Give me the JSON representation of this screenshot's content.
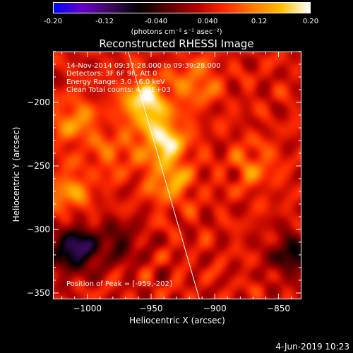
{
  "colorbar": {
    "ticks": [
      "-0.20",
      "-0.12",
      "-0.040",
      "0.040",
      "0.12",
      "0.20"
    ],
    "tick_values": [
      -0.2,
      -0.12,
      -0.04,
      0.04,
      0.12,
      0.2
    ],
    "range": [
      -0.2,
      0.2
    ],
    "unit_label": "(photons cm⁻² s⁻¹ asec⁻²)",
    "colormap": [
      "#0000ff",
      "#6a00c8",
      "#3a0a5e",
      "#000000",
      "#5a0000",
      "#b00000",
      "#ff2a00",
      "#ff7a00",
      "#ffc000",
      "#ffffff"
    ]
  },
  "chart_data": {
    "type": "heatmap",
    "title": "Reconstructed RHESSI Image",
    "xlabel": "Heliocentric X (arcsec)",
    "ylabel": "Heliocentric Y (arcsec)",
    "xlim": [
      -1027,
      -832
    ],
    "ylim": [
      -355,
      -160
    ],
    "xticks": [
      -1000,
      -950,
      -900,
      -850
    ],
    "yticks": [
      -350,
      -300,
      -250,
      -200
    ],
    "xtick_labels": [
      "−1000",
      "−950",
      "−900",
      "−850"
    ],
    "ytick_labels": [
      "−350",
      "−300",
      "−250",
      "−200"
    ],
    "peak": [
      -959,
      -202
    ],
    "limb_line": [
      [
        -968,
        -160
      ],
      [
        -912,
        -355
      ]
    ],
    "hot_spots": [
      {
        "x": -955,
        "y": -200,
        "v": 0.19
      },
      {
        "x": -940,
        "y": -230,
        "v": 0.18
      },
      {
        "x": -935,
        "y": -262,
        "v": 0.13
      },
      {
        "x": -1010,
        "y": -215,
        "v": 0.12
      },
      {
        "x": -1015,
        "y": -270,
        "v": 0.12
      },
      {
        "x": -915,
        "y": -185,
        "v": 0.11
      },
      {
        "x": -870,
        "y": -250,
        "v": 0.1
      },
      {
        "x": -980,
        "y": -240,
        "v": 0.09
      },
      {
        "x": -1010,
        "y": -315,
        "v": -0.12
      },
      {
        "x": -840,
        "y": -320,
        "v": -0.06
      },
      {
        "x": -975,
        "y": -310,
        "v": -0.03
      }
    ]
  },
  "annotations": {
    "time_range": "14-Nov-2014 09:37:28.000 to 09:39:28.000",
    "detectors": "Detectors: 3F 6F 9F, Att 0",
    "energy": "Energy Range: 3.0 - 6.0 keV",
    "clean": "Clean     Total counts: 4.01E+03",
    "peak": "Position of Peak = [-959,-202]"
  },
  "footer": {
    "date": "4-Jun-2019 10:23"
  }
}
